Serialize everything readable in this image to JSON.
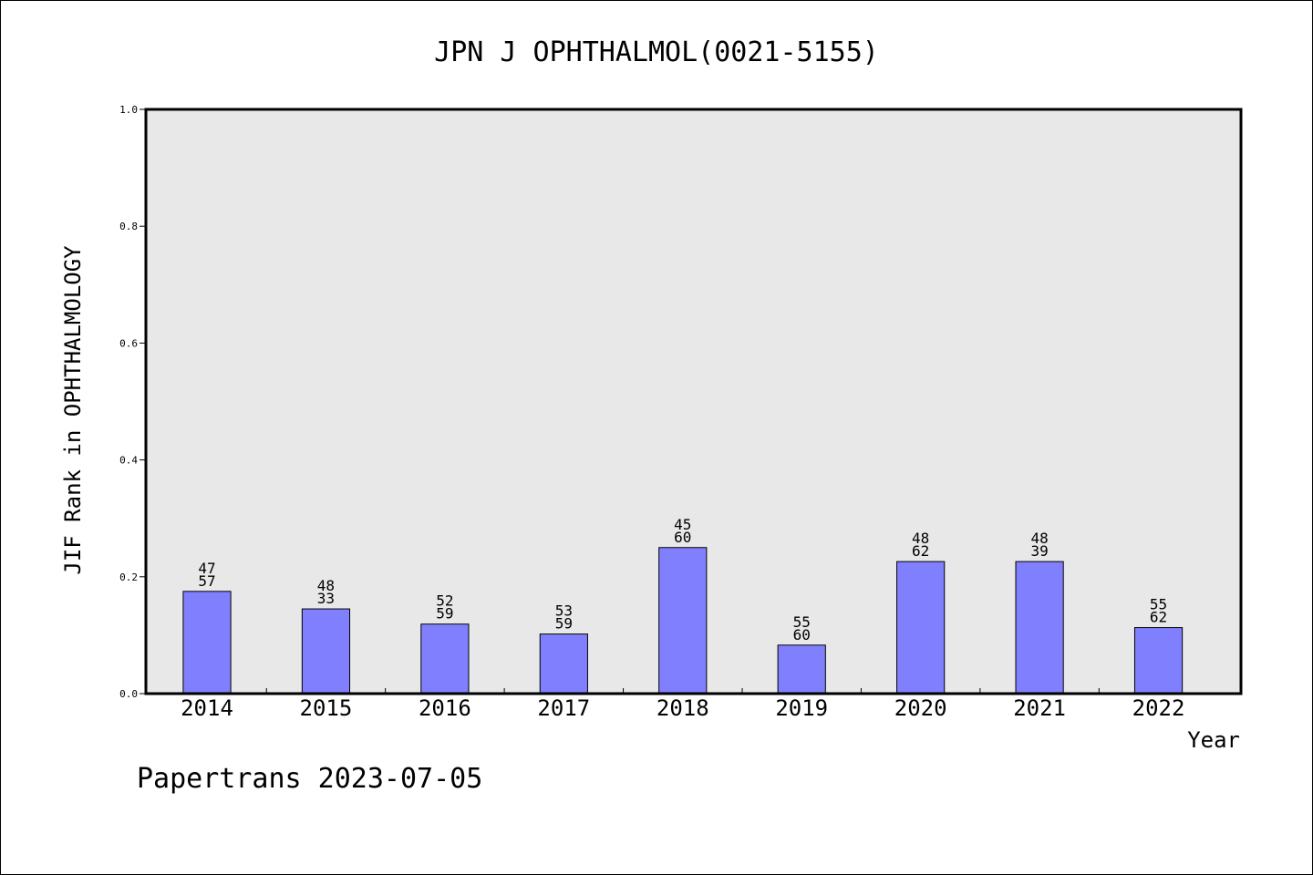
{
  "chart_data": {
    "type": "bar",
    "title": "JPN J OPHTHALMOL(0021-5155)",
    "xlabel": "Year",
    "ylabel": "JIF Rank in OPHTHALMOLOGY",
    "ylim": [
      0,
      1.0
    ],
    "yticks": [
      "0.0",
      "0.2",
      "0.4",
      "0.6",
      "0.8",
      "1.0"
    ],
    "categories": [
      "2014",
      "2015",
      "2016",
      "2017",
      "2018",
      "2019",
      "2020",
      "2021",
      "2022"
    ],
    "values": [
      0.175,
      0.145,
      0.119,
      0.102,
      0.25,
      0.083,
      0.226,
      0.226,
      0.113
    ],
    "label_top": [
      "47",
      "48",
      "52",
      "53",
      "45",
      "55",
      "48",
      "48",
      "55"
    ],
    "label_bottom": [
      "57",
      "33",
      "59",
      "59",
      "60",
      "60",
      "62",
      "39",
      "62"
    ],
    "bar_color": "#8080ff",
    "plot_background": "#e8e8e8",
    "grid": false,
    "legend": "none"
  },
  "footer": "Papertrans 2023-07-05"
}
